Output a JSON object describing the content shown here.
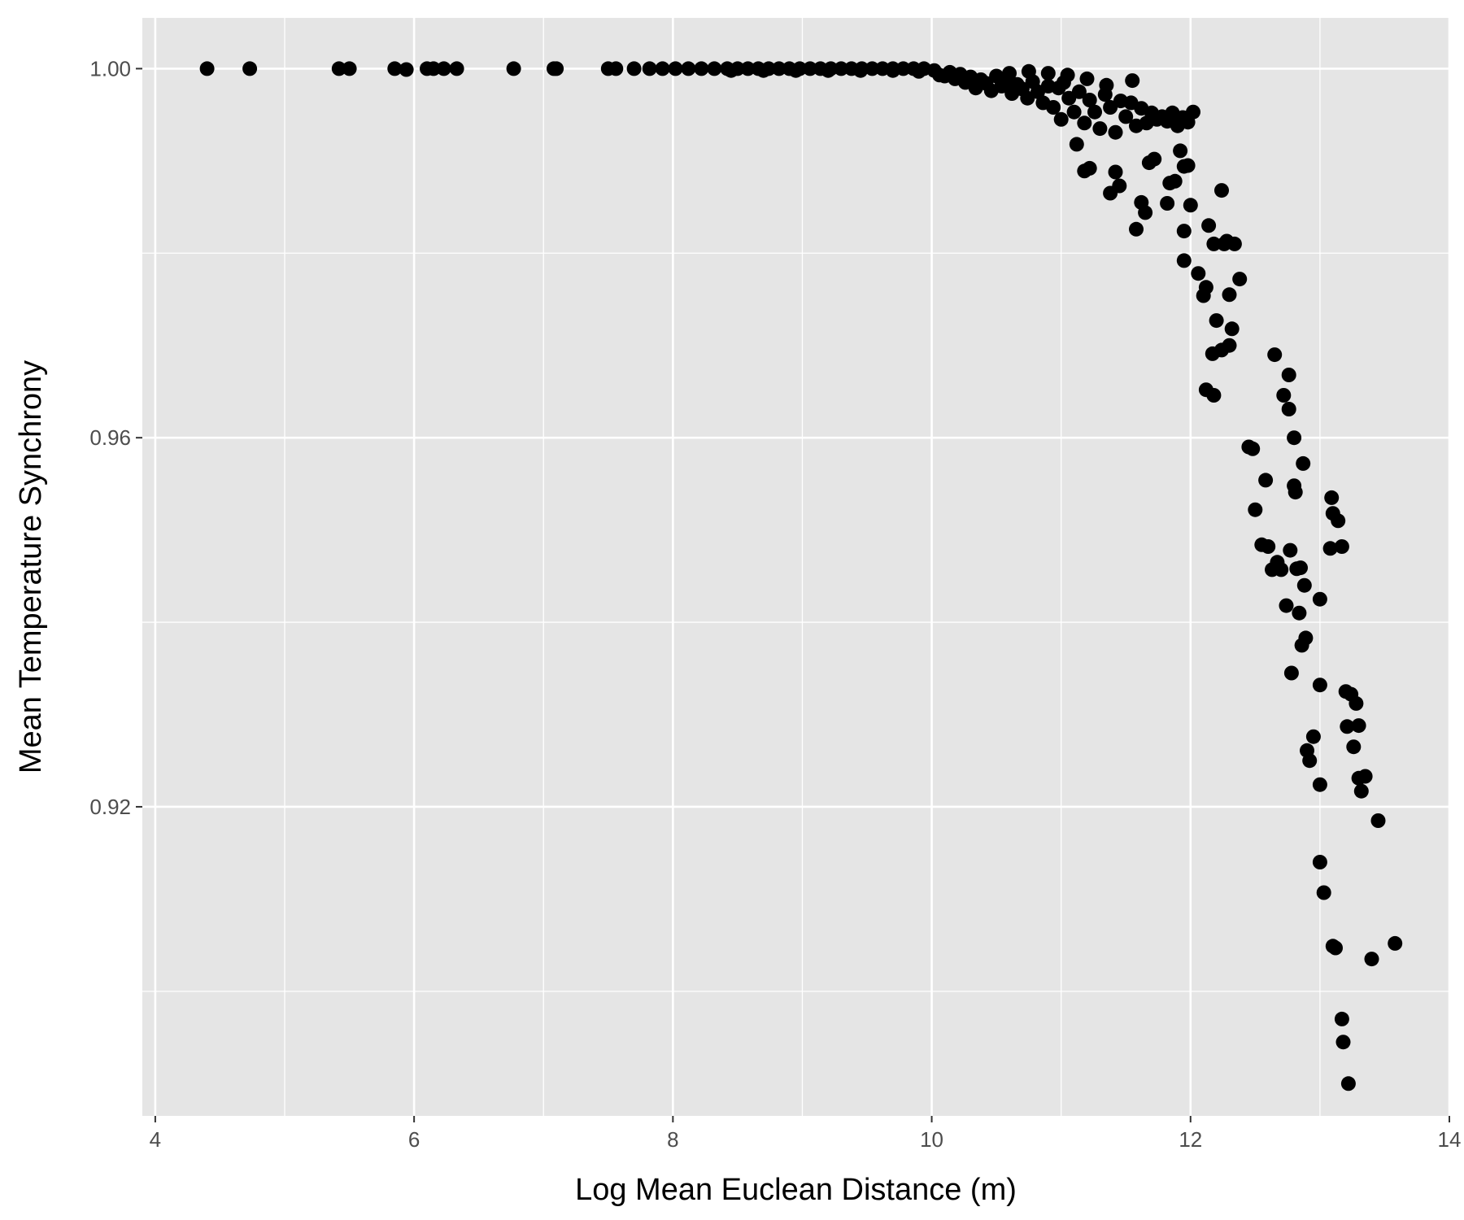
{
  "colors": {
    "panel_background": "#e5e5e5",
    "grid_line": "#ffffff",
    "point": "#000000",
    "tick_label": "#4d4d4d",
    "tick_mark": "#333333"
  },
  "chart_data": {
    "type": "scatter",
    "xlabel": "Log Mean Euclean Distance (m)",
    "ylabel": "Mean Temperature Synchrony",
    "xlim": [
      3.9,
      14
    ],
    "ylim": [
      0.8865,
      1.0055
    ],
    "x_ticks": [
      4,
      6,
      8,
      10,
      12,
      14
    ],
    "x_tick_labels": [
      "4",
      "6",
      "8",
      "10",
      "12",
      "14"
    ],
    "x_minor_ticks": [
      5,
      7,
      9,
      11,
      13
    ],
    "y_ticks": [
      0.92,
      0.96,
      1.0
    ],
    "y_tick_labels": [
      "0.92",
      "0.96",
      "1.00"
    ],
    "y_minor_ticks": [
      0.9,
      0.94,
      0.98
    ],
    "grid": true,
    "legend": "none",
    "series": [
      {
        "points": [
          [
            4.4,
            1.0
          ],
          [
            4.73,
            1.0
          ],
          [
            5.42,
            1.0
          ],
          [
            5.5,
            1.0
          ],
          [
            5.85,
            1.0
          ],
          [
            5.94,
            0.9999
          ],
          [
            6.1,
            1.0
          ],
          [
            6.15,
            1.0
          ],
          [
            6.23,
            1.0
          ],
          [
            6.33,
            1.0
          ],
          [
            6.77,
            1.0
          ],
          [
            7.08,
            1.0
          ],
          [
            7.1,
            1.0
          ],
          [
            7.5,
            1.0
          ],
          [
            7.56,
            1.0
          ],
          [
            7.7,
            1.0
          ],
          [
            7.82,
            1.0
          ],
          [
            7.92,
            1.0
          ],
          [
            8.02,
            1.0
          ],
          [
            8.12,
            1.0
          ],
          [
            8.22,
            1.0
          ],
          [
            8.32,
            1.0
          ],
          [
            8.42,
            1.0
          ],
          [
            8.5,
            1.0
          ],
          [
            8.58,
            1.0
          ],
          [
            8.66,
            1.0
          ],
          [
            8.74,
            1.0
          ],
          [
            8.82,
            1.0
          ],
          [
            8.9,
            1.0
          ],
          [
            8.98,
            1.0
          ],
          [
            9.06,
            1.0
          ],
          [
            9.14,
            1.0
          ],
          [
            9.22,
            1.0
          ],
          [
            9.3,
            1.0
          ],
          [
            9.38,
            1.0
          ],
          [
            9.46,
            1.0
          ],
          [
            9.54,
            1.0
          ],
          [
            9.62,
            1.0
          ],
          [
            9.7,
            1.0
          ],
          [
            9.78,
            1.0
          ],
          [
            9.86,
            1.0
          ],
          [
            9.94,
            1.0
          ],
          [
            8.45,
            0.9998
          ],
          [
            8.7,
            0.9998
          ],
          [
            8.95,
            0.9998
          ],
          [
            9.2,
            0.9998
          ],
          [
            9.45,
            0.9998
          ],
          [
            9.7,
            0.9998
          ],
          [
            9.9,
            0.9997
          ],
          [
            10.02,
            0.9998
          ],
          [
            10.06,
            0.9993
          ],
          [
            10.1,
            0.9992
          ],
          [
            10.14,
            0.9996
          ],
          [
            10.18,
            0.9989
          ],
          [
            10.22,
            0.9994
          ],
          [
            10.26,
            0.9985
          ],
          [
            10.3,
            0.9991
          ],
          [
            10.34,
            0.9979
          ],
          [
            10.38,
            0.9988
          ],
          [
            10.42,
            0.9984
          ],
          [
            10.46,
            0.9976
          ],
          [
            10.5,
            0.9992
          ],
          [
            10.54,
            0.9981
          ],
          [
            10.58,
            0.9987
          ],
          [
            10.62,
            0.9973
          ],
          [
            10.66,
            0.9983
          ],
          [
            10.7,
            0.9978
          ],
          [
            10.74,
            0.9968
          ],
          [
            10.78,
            0.9986
          ],
          [
            10.82,
            0.9975
          ],
          [
            10.86,
            0.9963
          ],
          [
            10.9,
            0.9981
          ],
          [
            10.94,
            0.9958
          ],
          [
            10.98,
            0.9979
          ],
          [
            11.0,
            0.9945
          ],
          [
            11.02,
            0.9985
          ],
          [
            11.06,
            0.9968
          ],
          [
            11.1,
            0.9953
          ],
          [
            11.14,
            0.9975
          ],
          [
            11.18,
            0.9941
          ],
          [
            11.22,
            0.9966
          ],
          [
            11.26,
            0.9953
          ],
          [
            11.3,
            0.9935
          ],
          [
            11.34,
            0.9972
          ],
          [
            11.38,
            0.9958
          ],
          [
            11.42,
            0.9931
          ],
          [
            11.46,
            0.9965
          ],
          [
            11.5,
            0.9948
          ],
          [
            11.54,
            0.9963
          ],
          [
            11.58,
            0.9938
          ],
          [
            11.62,
            0.9957
          ],
          [
            11.66,
            0.9941
          ],
          [
            11.7,
            0.9952
          ],
          [
            11.74,
            0.9945
          ],
          [
            11.78,
            0.9948
          ],
          [
            11.82,
            0.9943
          ],
          [
            11.86,
            0.9952
          ],
          [
            11.9,
            0.9938
          ],
          [
            11.94,
            0.9947
          ],
          [
            11.98,
            0.9942
          ],
          [
            12.02,
            0.9953
          ],
          [
            10.6,
            0.9995
          ],
          [
            10.75,
            0.9997
          ],
          [
            10.9,
            0.9995
          ],
          [
            11.05,
            0.9993
          ],
          [
            11.2,
            0.9989
          ],
          [
            11.35,
            0.9982
          ],
          [
            11.55,
            0.9987
          ],
          [
            11.12,
            0.9918
          ],
          [
            11.18,
            0.9889
          ],
          [
            11.22,
            0.9892
          ],
          [
            11.38,
            0.9865
          ],
          [
            11.42,
            0.9888
          ],
          [
            11.45,
            0.9873
          ],
          [
            11.58,
            0.9826
          ],
          [
            11.62,
            0.9855
          ],
          [
            11.65,
            0.9844
          ],
          [
            11.68,
            0.9898
          ],
          [
            11.72,
            0.9902
          ],
          [
            11.82,
            0.9854
          ],
          [
            11.84,
            0.9876
          ],
          [
            11.88,
            0.9878
          ],
          [
            11.92,
            0.9911
          ],
          [
            11.95,
            0.9894
          ],
          [
            11.95,
            0.9824
          ],
          [
            11.98,
            0.9895
          ],
          [
            12.0,
            0.9852
          ],
          [
            11.95,
            0.9792
          ],
          [
            12.06,
            0.9778
          ],
          [
            12.1,
            0.9754
          ],
          [
            12.12,
            0.9763
          ],
          [
            12.12,
            0.9652
          ],
          [
            12.14,
            0.983
          ],
          [
            12.17,
            0.9691
          ],
          [
            12.18,
            0.981
          ],
          [
            12.18,
            0.9646
          ],
          [
            12.2,
            0.9727
          ],
          [
            12.24,
            0.9695
          ],
          [
            12.24,
            0.9868
          ],
          [
            12.26,
            0.981
          ],
          [
            12.28,
            0.9813
          ],
          [
            12.3,
            0.97
          ],
          [
            12.3,
            0.9755
          ],
          [
            12.32,
            0.9718
          ],
          [
            12.34,
            0.981
          ],
          [
            12.38,
            0.9772
          ],
          [
            12.45,
            0.959
          ],
          [
            12.48,
            0.9588
          ],
          [
            12.5,
            0.9522
          ],
          [
            12.55,
            0.9484
          ],
          [
            12.58,
            0.9554
          ],
          [
            12.6,
            0.9482
          ],
          [
            12.63,
            0.9457
          ],
          [
            12.65,
            0.969
          ],
          [
            12.67,
            0.9465
          ],
          [
            12.7,
            0.9457
          ],
          [
            12.72,
            0.9646
          ],
          [
            12.74,
            0.9418
          ],
          [
            12.76,
            0.9631
          ],
          [
            12.76,
            0.9668
          ],
          [
            12.77,
            0.9478
          ],
          [
            12.78,
            0.9345
          ],
          [
            12.8,
            0.96
          ],
          [
            12.8,
            0.9548
          ],
          [
            12.81,
            0.9541
          ],
          [
            12.82,
            0.9458
          ],
          [
            12.84,
            0.941
          ],
          [
            12.85,
            0.9459
          ],
          [
            12.86,
            0.9375
          ],
          [
            12.87,
            0.9572
          ],
          [
            12.88,
            0.944
          ],
          [
            12.89,
            0.9383
          ],
          [
            12.9,
            0.9261
          ],
          [
            12.92,
            0.925
          ],
          [
            12.95,
            0.9276
          ],
          [
            13.0,
            0.9425
          ],
          [
            13.0,
            0.9332
          ],
          [
            13.0,
            0.9224
          ],
          [
            13.0,
            0.914
          ],
          [
            13.03,
            0.9107
          ],
          [
            13.08,
            0.948
          ],
          [
            13.09,
            0.9535
          ],
          [
            13.1,
            0.9518
          ],
          [
            13.1,
            0.9049
          ],
          [
            13.12,
            0.9047
          ],
          [
            13.14,
            0.951
          ],
          [
            13.17,
            0.9482
          ],
          [
            13.17,
            0.897
          ],
          [
            13.18,
            0.8945
          ],
          [
            13.2,
            0.9325
          ],
          [
            13.21,
            0.9287
          ],
          [
            13.22,
            0.89
          ],
          [
            13.24,
            0.9322
          ],
          [
            13.26,
            0.9265
          ],
          [
            13.28,
            0.9312
          ],
          [
            13.3,
            0.9288
          ],
          [
            13.3,
            0.9231
          ],
          [
            13.32,
            0.9217
          ],
          [
            13.35,
            0.9233
          ],
          [
            13.4,
            0.9035
          ],
          [
            13.45,
            0.9185
          ],
          [
            13.58,
            0.9052
          ]
        ]
      }
    ]
  }
}
